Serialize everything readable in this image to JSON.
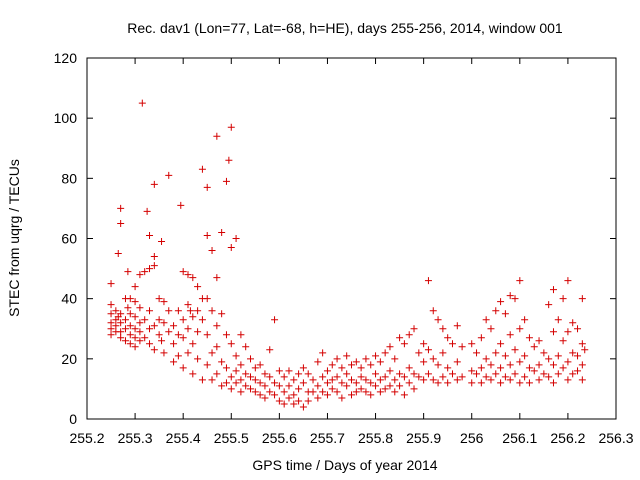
{
  "chart_data": {
    "type": "scatter",
    "title": "Rec. dav1 (Lon=77, Lat=-68, h=HE), days 255-256, 2014, window 001",
    "xlabel": "GPS time / Days of year 2014",
    "ylabel": "STEC from uqrg / TECUs",
    "xlim": [
      255.2,
      256.3
    ],
    "ylim": [
      0,
      120
    ],
    "xticks": [
      255.2,
      255.3,
      255.4,
      255.5,
      255.6,
      255.7,
      255.8,
      255.9,
      256.0,
      256.1,
      256.2,
      256.3
    ],
    "xtick_labels": [
      "255.2",
      "255.3",
      "255.4",
      "255.5",
      "255.6",
      "255.7",
      "255.8",
      "255.9",
      "256",
      "256.1",
      "256.2",
      "256.3"
    ],
    "yticks": [
      0,
      20,
      40,
      60,
      80,
      100,
      120
    ],
    "ytick_labels": [
      "0",
      "20",
      "40",
      "60",
      "80",
      "100",
      "120"
    ],
    "grid": false,
    "marker": "+",
    "color": "#d40000",
    "points": [
      [
        255.25,
        45
      ],
      [
        255.25,
        38
      ],
      [
        255.25,
        35
      ],
      [
        255.25,
        32
      ],
      [
        255.25,
        30
      ],
      [
        255.25,
        28
      ],
      [
        255.26,
        36
      ],
      [
        255.26,
        33
      ],
      [
        255.26,
        31
      ],
      [
        255.26,
        29
      ],
      [
        255.265,
        55
      ],
      [
        255.265,
        34
      ],
      [
        255.27,
        70
      ],
      [
        255.27,
        65
      ],
      [
        255.27,
        35
      ],
      [
        255.27,
        32
      ],
      [
        255.27,
        29
      ],
      [
        255.27,
        27
      ],
      [
        255.28,
        40
      ],
      [
        255.28,
        33
      ],
      [
        255.28,
        30
      ],
      [
        255.28,
        26
      ],
      [
        255.285,
        49
      ],
      [
        255.285,
        37
      ],
      [
        255.29,
        40
      ],
      [
        255.29,
        35
      ],
      [
        255.29,
        31
      ],
      [
        255.29,
        28
      ],
      [
        255.29,
        25
      ],
      [
        255.3,
        44
      ],
      [
        255.3,
        39
      ],
      [
        255.3,
        34
      ],
      [
        255.3,
        30
      ],
      [
        255.3,
        27
      ],
      [
        255.3,
        24
      ],
      [
        255.31,
        48
      ],
      [
        255.31,
        37
      ],
      [
        255.31,
        32
      ],
      [
        255.31,
        29
      ],
      [
        255.31,
        26
      ],
      [
        255.315,
        105
      ],
      [
        255.32,
        49
      ],
      [
        255.32,
        33
      ],
      [
        255.32,
        27
      ],
      [
        255.325,
        69
      ],
      [
        255.33,
        61
      ],
      [
        255.33,
        50
      ],
      [
        255.33,
        36
      ],
      [
        255.33,
        30
      ],
      [
        255.33,
        25
      ],
      [
        255.34,
        78
      ],
      [
        255.34,
        54
      ],
      [
        255.34,
        51
      ],
      [
        255.34,
        31
      ],
      [
        255.34,
        23
      ],
      [
        255.35,
        40
      ],
      [
        255.35,
        33
      ],
      [
        255.35,
        28
      ],
      [
        255.355,
        59
      ],
      [
        255.355,
        26
      ],
      [
        255.36,
        39
      ],
      [
        255.36,
        32
      ],
      [
        255.36,
        22
      ],
      [
        255.37,
        81
      ],
      [
        255.37,
        36
      ],
      [
        255.37,
        29
      ],
      [
        255.38,
        31
      ],
      [
        255.38,
        25
      ],
      [
        255.38,
        19
      ],
      [
        255.39,
        36
      ],
      [
        255.39,
        28
      ],
      [
        255.39,
        21
      ],
      [
        255.395,
        71
      ],
      [
        255.4,
        49
      ],
      [
        255.4,
        33
      ],
      [
        255.4,
        27
      ],
      [
        255.4,
        17
      ],
      [
        255.41,
        48
      ],
      [
        255.41,
        38
      ],
      [
        255.41,
        30
      ],
      [
        255.41,
        22
      ],
      [
        255.415,
        36
      ],
      [
        255.42,
        47
      ],
      [
        255.42,
        34
      ],
      [
        255.42,
        25
      ],
      [
        255.42,
        15
      ],
      [
        255.43,
        44
      ],
      [
        255.43,
        36
      ],
      [
        255.43,
        29
      ],
      [
        255.43,
        20
      ],
      [
        255.44,
        83
      ],
      [
        255.44,
        40
      ],
      [
        255.44,
        33
      ],
      [
        255.44,
        13
      ],
      [
        255.45,
        77
      ],
      [
        255.45,
        61
      ],
      [
        255.45,
        40
      ],
      [
        255.45,
        28
      ],
      [
        255.45,
        18
      ],
      [
        255.46,
        56
      ],
      [
        255.46,
        36
      ],
      [
        255.46,
        22
      ],
      [
        255.46,
        13
      ],
      [
        255.47,
        94
      ],
      [
        255.47,
        47
      ],
      [
        255.47,
        31
      ],
      [
        255.47,
        24
      ],
      [
        255.47,
        15
      ],
      [
        255.48,
        62
      ],
      [
        255.48,
        35
      ],
      [
        255.48,
        19
      ],
      [
        255.48,
        11
      ],
      [
        255.49,
        79
      ],
      [
        255.49,
        28
      ],
      [
        255.49,
        17
      ],
      [
        255.49,
        12
      ],
      [
        255.495,
        86
      ],
      [
        255.5,
        97
      ],
      [
        255.5,
        57
      ],
      [
        255.5,
        25
      ],
      [
        255.5,
        14
      ],
      [
        255.5,
        10
      ],
      [
        255.51,
        60
      ],
      [
        255.51,
        21
      ],
      [
        255.51,
        16
      ],
      [
        255.51,
        12
      ],
      [
        255.52,
        28
      ],
      [
        255.52,
        18
      ],
      [
        255.52,
        13
      ],
      [
        255.52,
        9
      ],
      [
        255.53,
        24
      ],
      [
        255.53,
        15
      ],
      [
        255.53,
        11
      ],
      [
        255.54,
        20
      ],
      [
        255.54,
        14
      ],
      [
        255.54,
        10
      ],
      [
        255.55,
        17
      ],
      [
        255.55,
        13
      ],
      [
        255.55,
        9
      ],
      [
        255.56,
        18
      ],
      [
        255.56,
        12
      ],
      [
        255.56,
        8
      ],
      [
        255.57,
        15
      ],
      [
        255.57,
        11
      ],
      [
        255.57,
        7
      ],
      [
        255.58,
        23
      ],
      [
        255.58,
        14
      ],
      [
        255.58,
        9
      ],
      [
        255.59,
        33
      ],
      [
        255.59,
        12
      ],
      [
        255.59,
        8
      ],
      [
        255.6,
        16
      ],
      [
        255.6,
        11
      ],
      [
        255.6,
        6
      ],
      [
        255.61,
        14
      ],
      [
        255.61,
        9
      ],
      [
        255.61,
        5
      ],
      [
        255.62,
        16
      ],
      [
        255.62,
        11
      ],
      [
        255.62,
        7
      ],
      [
        255.63,
        13
      ],
      [
        255.63,
        8
      ],
      [
        255.63,
        5
      ],
      [
        255.64,
        15
      ],
      [
        255.64,
        10
      ],
      [
        255.64,
        6
      ],
      [
        255.65,
        17
      ],
      [
        255.65,
        12
      ],
      [
        255.65,
        4
      ],
      [
        255.66,
        15
      ],
      [
        255.66,
        9
      ],
      [
        255.66,
        6
      ],
      [
        255.67,
        13
      ],
      [
        255.67,
        9
      ],
      [
        255.68,
        19
      ],
      [
        255.68,
        11
      ],
      [
        255.68,
        7
      ],
      [
        255.69,
        22
      ],
      [
        255.69,
        14
      ],
      [
        255.69,
        9
      ],
      [
        255.7,
        16
      ],
      [
        255.7,
        12
      ],
      [
        255.7,
        8
      ],
      [
        255.71,
        18
      ],
      [
        255.71,
        13
      ],
      [
        255.71,
        10
      ],
      [
        255.72,
        20
      ],
      [
        255.72,
        14
      ],
      [
        255.72,
        9
      ],
      [
        255.73,
        17
      ],
      [
        255.73,
        12
      ],
      [
        255.73,
        7
      ],
      [
        255.74,
        21
      ],
      [
        255.74,
        15
      ],
      [
        255.74,
        11
      ],
      [
        255.75,
        18
      ],
      [
        255.75,
        13
      ],
      [
        255.75,
        8
      ],
      [
        255.76,
        19
      ],
      [
        255.76,
        12
      ],
      [
        255.76,
        9
      ],
      [
        255.77,
        17
      ],
      [
        255.77,
        14
      ],
      [
        255.77,
        10
      ],
      [
        255.78,
        20
      ],
      [
        255.78,
        13
      ],
      [
        255.78,
        9
      ],
      [
        255.79,
        18
      ],
      [
        255.79,
        12
      ],
      [
        255.79,
        8
      ],
      [
        255.8,
        21
      ],
      [
        255.8,
        15
      ],
      [
        255.8,
        11
      ],
      [
        255.81,
        19
      ],
      [
        255.81,
        13
      ],
      [
        255.81,
        9
      ],
      [
        255.82,
        22
      ],
      [
        255.82,
        14
      ],
      [
        255.82,
        10
      ],
      [
        255.83,
        24
      ],
      [
        255.83,
        16
      ],
      [
        255.83,
        11
      ],
      [
        255.84,
        20
      ],
      [
        255.84,
        13
      ],
      [
        255.84,
        9
      ],
      [
        255.85,
        27
      ],
      [
        255.85,
        15
      ],
      [
        255.85,
        11
      ],
      [
        255.86,
        25
      ],
      [
        255.86,
        14
      ],
      [
        255.86,
        8
      ],
      [
        255.87,
        28
      ],
      [
        255.87,
        17
      ],
      [
        255.87,
        12
      ],
      [
        255.88,
        30
      ],
      [
        255.88,
        15
      ],
      [
        255.88,
        10
      ],
      [
        255.89,
        22
      ],
      [
        255.89,
        14
      ],
      [
        255.9,
        25
      ],
      [
        255.9,
        19
      ],
      [
        255.9,
        13
      ],
      [
        255.91,
        46
      ],
      [
        255.91,
        23
      ],
      [
        255.91,
        15
      ],
      [
        255.92,
        36
      ],
      [
        255.92,
        20
      ],
      [
        255.92,
        13
      ],
      [
        255.93,
        33
      ],
      [
        255.93,
        18
      ],
      [
        255.93,
        12
      ],
      [
        255.94,
        30
      ],
      [
        255.94,
        22
      ],
      [
        255.94,
        14
      ],
      [
        255.95,
        27
      ],
      [
        255.95,
        17
      ],
      [
        255.95,
        12
      ],
      [
        255.96,
        25
      ],
      [
        255.96,
        15
      ],
      [
        255.97,
        31
      ],
      [
        255.97,
        19
      ],
      [
        255.97,
        13
      ],
      [
        255.98,
        24
      ],
      [
        255.98,
        14
      ],
      [
        256.0,
        25
      ],
      [
        256.0,
        16
      ],
      [
        256.0,
        12
      ],
      [
        256.01,
        22
      ],
      [
        256.01,
        15
      ],
      [
        256.02,
        27
      ],
      [
        256.02,
        17
      ],
      [
        256.02,
        12
      ],
      [
        256.03,
        33
      ],
      [
        256.03,
        20
      ],
      [
        256.03,
        14
      ],
      [
        256.04,
        30
      ],
      [
        256.04,
        18
      ],
      [
        256.04,
        13
      ],
      [
        256.05,
        36
      ],
      [
        256.05,
        22
      ],
      [
        256.05,
        15
      ],
      [
        256.06,
        39
      ],
      [
        256.06,
        25
      ],
      [
        256.06,
        17
      ],
      [
        256.06,
        12
      ],
      [
        256.07,
        35
      ],
      [
        256.07,
        21
      ],
      [
        256.07,
        14
      ],
      [
        256.08,
        41
      ],
      [
        256.08,
        28
      ],
      [
        256.08,
        18
      ],
      [
        256.08,
        13
      ],
      [
        256.09,
        40
      ],
      [
        256.09,
        23
      ],
      [
        256.09,
        15
      ],
      [
        256.1,
        46
      ],
      [
        256.1,
        30
      ],
      [
        256.1,
        19
      ],
      [
        256.1,
        12
      ],
      [
        256.11,
        33
      ],
      [
        256.11,
        21
      ],
      [
        256.11,
        14
      ],
      [
        256.12,
        27
      ],
      [
        256.12,
        17
      ],
      [
        256.12,
        12
      ],
      [
        256.13,
        24
      ],
      [
        256.13,
        16
      ],
      [
        256.14,
        26
      ],
      [
        256.14,
        18
      ],
      [
        256.14,
        13
      ],
      [
        256.15,
        22
      ],
      [
        256.15,
        15
      ],
      [
        256.16,
        38
      ],
      [
        256.16,
        20
      ],
      [
        256.16,
        14
      ],
      [
        256.17,
        43
      ],
      [
        256.17,
        29
      ],
      [
        256.17,
        18
      ],
      [
        256.17,
        12
      ],
      [
        256.18,
        33
      ],
      [
        256.18,
        21
      ],
      [
        256.18,
        15
      ],
      [
        256.19,
        40
      ],
      [
        256.19,
        26
      ],
      [
        256.19,
        17
      ],
      [
        256.2,
        46
      ],
      [
        256.2,
        29
      ],
      [
        256.2,
        19
      ],
      [
        256.2,
        13
      ],
      [
        256.21,
        32
      ],
      [
        256.21,
        22
      ],
      [
        256.21,
        15
      ],
      [
        256.22,
        30
      ],
      [
        256.22,
        21
      ],
      [
        256.22,
        16
      ],
      [
        256.23,
        40
      ],
      [
        256.23,
        25
      ],
      [
        256.23,
        18
      ],
      [
        256.23,
        13
      ],
      [
        256.235,
        23
      ]
    ]
  }
}
